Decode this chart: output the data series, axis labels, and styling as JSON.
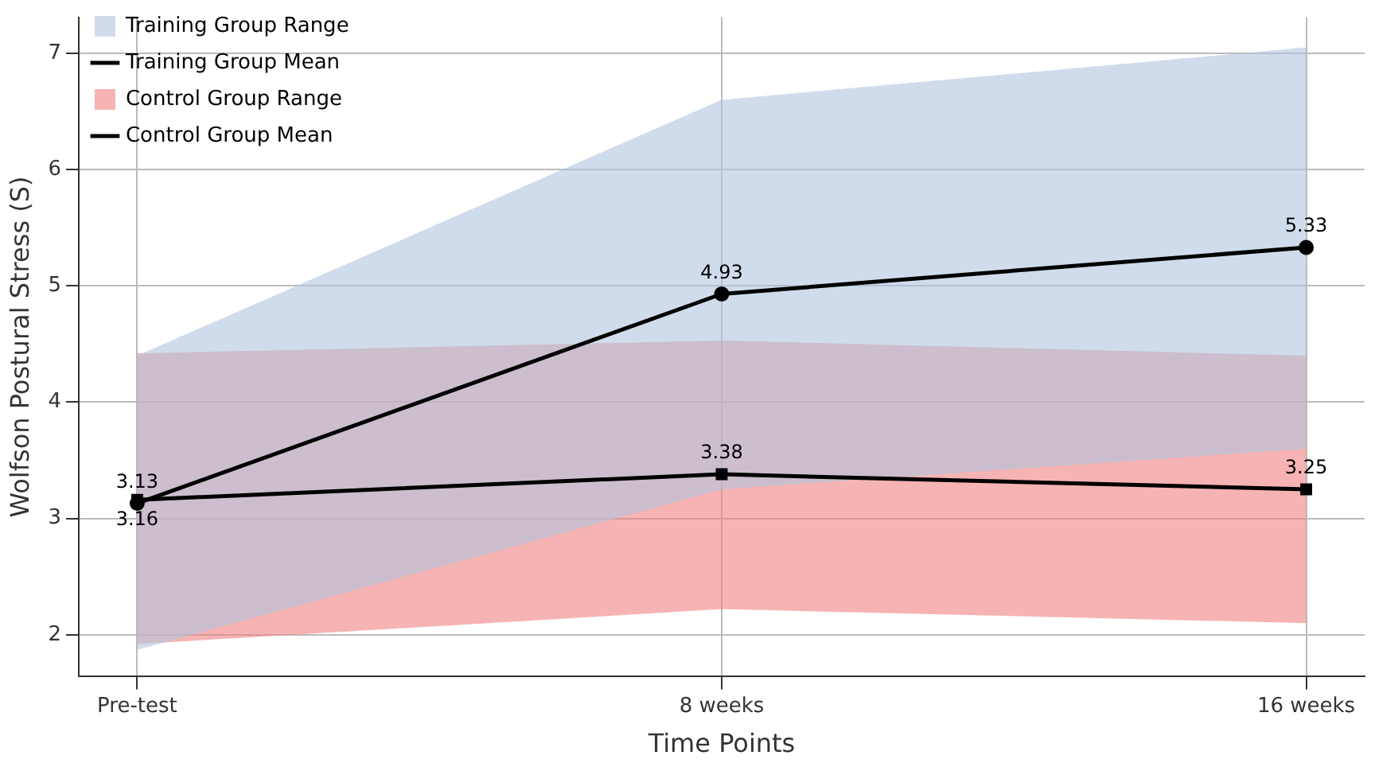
{
  "chart_data": {
    "type": "line",
    "xlabel": "Time Points",
    "ylabel": "Wolfson Postural Stress (S)",
    "categories": [
      "Pre-test",
      "8 weeks",
      "16 weeks"
    ],
    "series": [
      {
        "name": "Training Group Range",
        "type": "area",
        "color": "#b0c4de",
        "values": [
          null,
          null,
          null
        ],
        "lower": [
          1.87,
          3.25,
          3.6
        ],
        "upper": [
          4.4,
          6.6,
          7.05
        ]
      },
      {
        "name": "Training Group Mean",
        "type": "line",
        "color": "#000000",
        "marker": "circle",
        "values": [
          3.13,
          4.93,
          5.33
        ],
        "value_labels": [
          "3.13",
          "4.93",
          "5.33"
        ]
      },
      {
        "name": "Control Group Range",
        "type": "area",
        "color": "#f08080",
        "values": [
          null,
          null,
          null
        ],
        "lower": [
          1.92,
          2.22,
          2.1
        ],
        "upper": [
          4.42,
          4.53,
          4.4
        ]
      },
      {
        "name": "Control Group Mean",
        "type": "line",
        "color": "#000000",
        "marker": "square",
        "values": [
          3.16,
          3.38,
          3.25
        ],
        "value_labels": [
          "3.16",
          "3.38",
          "3.25"
        ]
      }
    ],
    "ylim": [
      1.64,
      7.31
    ],
    "yticks": [
      2,
      3,
      4,
      5,
      6,
      7
    ],
    "grid": true,
    "legend": "top left",
    "line_style": "solid"
  }
}
